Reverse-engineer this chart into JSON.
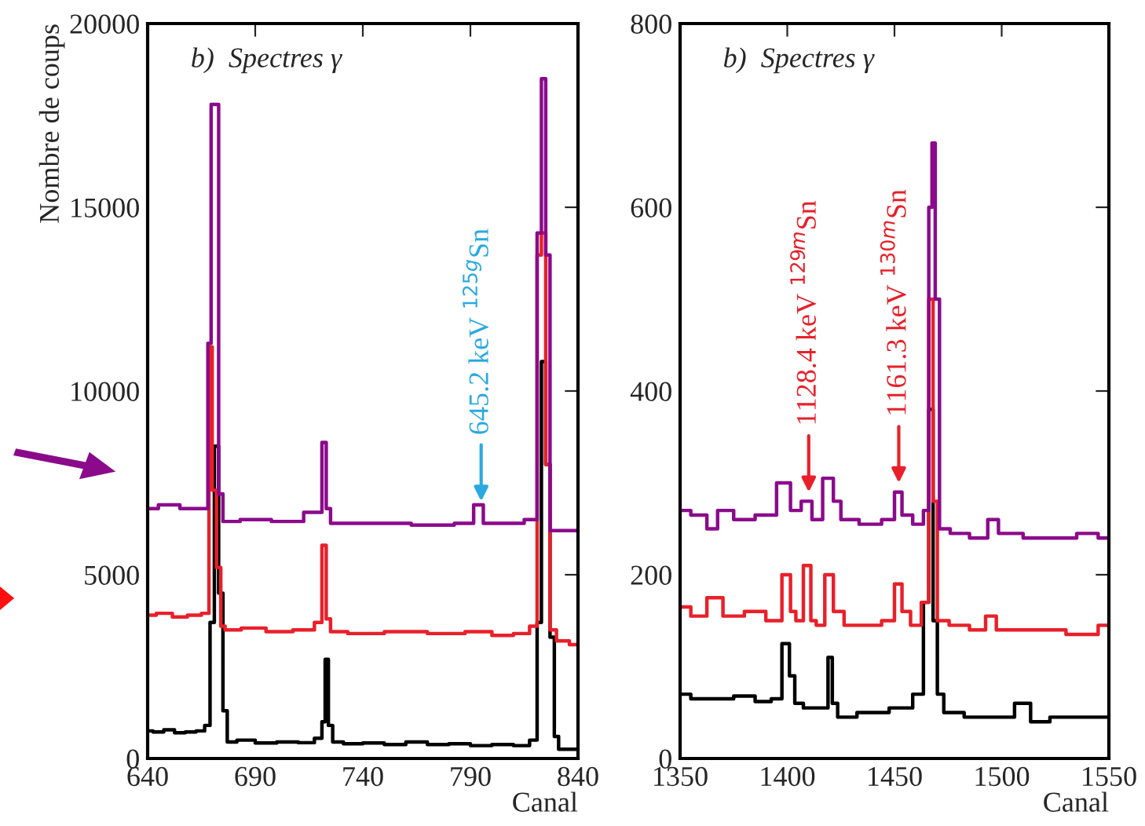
{
  "chart_data": [
    {
      "type": "step",
      "title": "b)  Spectres γ",
      "xlabel": "Canal",
      "ylabel": "Nombre de coups",
      "xlim": [
        640,
        840
      ],
      "ylim": [
        0,
        20000
      ],
      "xticks": [
        640,
        690,
        740,
        790,
        840
      ],
      "yticks": [
        0,
        5000,
        10000,
        15000,
        20000
      ],
      "series": [
        {
          "color": "#000000",
          "x": [
            640,
            645,
            650,
            655,
            660,
            665,
            668,
            670,
            672,
            674,
            676,
            678,
            685,
            695,
            705,
            715,
            720,
            722,
            723,
            725,
            727,
            735,
            745,
            755,
            765,
            775,
            785,
            795,
            805,
            815,
            820,
            822,
            824,
            826,
            828,
            830,
            832,
            840
          ],
          "values": [
            750,
            720,
            780,
            700,
            720,
            750,
            900,
            3700,
            8500,
            4500,
            1300,
            450,
            500,
            420,
            450,
            430,
            550,
            1000,
            2700,
            900,
            450,
            400,
            420,
            380,
            450,
            380,
            400,
            350,
            380,
            350,
            500,
            3700,
            10800,
            8000,
            3300,
            600,
            250,
            250
          ]
        },
        {
          "color": "#e8202a",
          "x": [
            640,
            648,
            655,
            662,
            668,
            669,
            671,
            673,
            675,
            677,
            690,
            700,
            715,
            720,
            722,
            724,
            726,
            740,
            760,
            780,
            795,
            805,
            815,
            820,
            822,
            824,
            826,
            828,
            832,
            840
          ],
          "values": [
            3900,
            3950,
            3850,
            3900,
            3950,
            11200,
            7300,
            5200,
            3600,
            3500,
            3550,
            3450,
            3500,
            3700,
            5800,
            3800,
            3450,
            3400,
            3450,
            3400,
            3450,
            3350,
            3400,
            3600,
            13700,
            14300,
            8000,
            3500,
            3200,
            3100
          ]
        },
        {
          "color": "#8b0a8b",
          "x": [
            640,
            650,
            660,
            667,
            669,
            670,
            672,
            674,
            676,
            690,
            705,
            720,
            722,
            724,
            726,
            750,
            775,
            790,
            793,
            795,
            797,
            810,
            820,
            822,
            824,
            826,
            828,
            840
          ],
          "values": [
            6800,
            6900,
            6800,
            6800,
            11300,
            17800,
            17800,
            7200,
            6450,
            6500,
            6450,
            6700,
            8600,
            6800,
            6400,
            6400,
            6350,
            6400,
            6900,
            6900,
            6400,
            6400,
            6500,
            14300,
            18500,
            13700,
            6200,
            6200
          ]
        }
      ],
      "annotations": [
        {
          "text": "645.2 keV $^{125g}$Sn",
          "x": 795,
          "y": 7000
        }
      ]
    },
    {
      "type": "step",
      "title": "b)  Spectres γ",
      "xlabel": "Canal",
      "xlim": [
        1350,
        1550
      ],
      "ylim": [
        0,
        800
      ],
      "xticks": [
        1350,
        1400,
        1450,
        1500,
        1550
      ],
      "yticks": [
        0,
        200,
        400,
        600,
        800
      ],
      "series": [
        {
          "color": "#000000",
          "x": [
            1350,
            1360,
            1370,
            1380,
            1390,
            1395,
            1400,
            1402,
            1405,
            1410,
            1418,
            1420,
            1422,
            1425,
            1440,
            1455,
            1462,
            1465,
            1467,
            1469,
            1471,
            1475,
            1490,
            1500,
            1512,
            1515,
            1530,
            1550
          ],
          "values": [
            70,
            65,
            65,
            68,
            62,
            65,
            125,
            90,
            60,
            55,
            55,
            110,
            60,
            45,
            50,
            55,
            70,
            170,
            380,
            150,
            70,
            50,
            45,
            45,
            60,
            40,
            45,
            45
          ]
        },
        {
          "color": "#e8202a",
          "x": [
            1350,
            1360,
            1365,
            1375,
            1385,
            1395,
            1400,
            1403,
            1405,
            1410,
            1412,
            1415,
            1420,
            1423,
            1430,
            1440,
            1448,
            1452,
            1455,
            1460,
            1465,
            1467,
            1469,
            1471,
            1480,
            1490,
            1495,
            1500,
            1520,
            1540,
            1550
          ],
          "values": [
            165,
            155,
            175,
            155,
            160,
            150,
            200,
            160,
            150,
            210,
            150,
            145,
            200,
            160,
            145,
            145,
            150,
            190,
            160,
            145,
            170,
            500,
            280,
            150,
            145,
            140,
            155,
            140,
            140,
            135,
            145
          ]
        },
        {
          "color": "#8b0a8b",
          "x": [
            1350,
            1360,
            1365,
            1370,
            1380,
            1390,
            1400,
            1403,
            1410,
            1413,
            1420,
            1423,
            1427,
            1440,
            1448,
            1452,
            1455,
            1462,
            1465,
            1467,
            1468,
            1470,
            1472,
            1480,
            1490,
            1497,
            1500,
            1520,
            1530,
            1540,
            1550
          ],
          "values": [
            270,
            265,
            250,
            270,
            260,
            265,
            300,
            270,
            280,
            260,
            305,
            280,
            260,
            255,
            260,
            290,
            265,
            255,
            270,
            600,
            670,
            500,
            250,
            245,
            240,
            260,
            245,
            240,
            240,
            245,
            240
          ]
        }
      ],
      "annotations": [
        {
          "text": "1128.4 keV $^{129m}$Sn",
          "x": 1410,
          "y": 290
        },
        {
          "text": "1161.3 keV $^{130m}$Sn",
          "x": 1452,
          "y": 300
        }
      ]
    }
  ]
}
